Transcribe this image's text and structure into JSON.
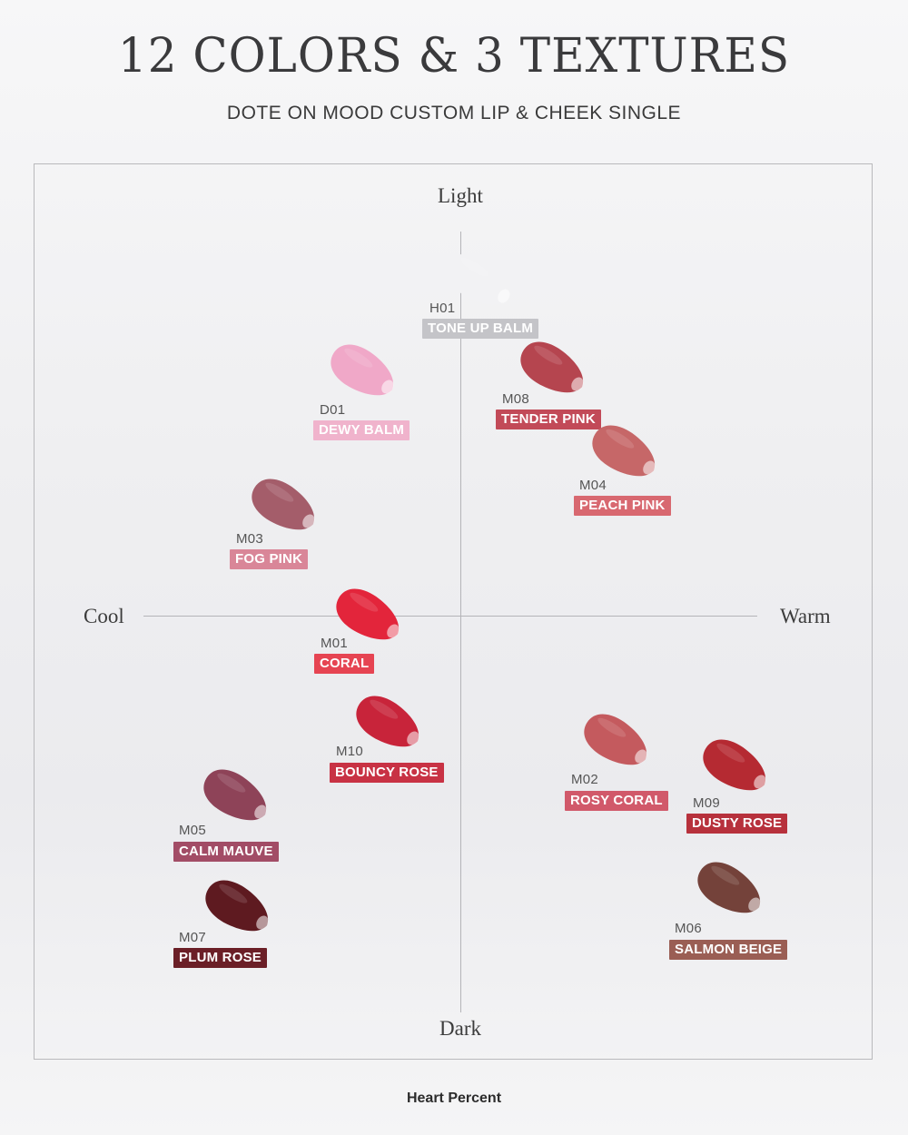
{
  "title": "12 COLORS & 3 TEXTURES",
  "subtitle": "DOTE ON MOOD CUSTOM LIP & CHEEK SINGLE",
  "axes": {
    "top": "Light",
    "bottom": "Dark",
    "left": "Cool",
    "right": "Warm"
  },
  "shades": [
    {
      "code": "H01",
      "name": "TONE UP BALM",
      "swatch_color": "#f2f2f4",
      "label_color": "#c4c4c8"
    },
    {
      "code": "D01",
      "name": "DEWY BALM",
      "swatch_color": "#f0a8c8",
      "label_color": "#f0b3cc"
    },
    {
      "code": "M08",
      "name": "TENDER PINK",
      "swatch_color": "#b5454f",
      "label_color": "#c24a58"
    },
    {
      "code": "M04",
      "name": "PEACH PINK",
      "swatch_color": "#c66768",
      "label_color": "#d86870"
    },
    {
      "code": "M03",
      "name": "FOG PINK",
      "swatch_color": "#a45d6a",
      "label_color": "#d98698"
    },
    {
      "code": "M01",
      "name": "CORAL",
      "swatch_color": "#e3253b",
      "label_color": "#e64452"
    },
    {
      "code": "M10",
      "name": "BOUNCY ROSE",
      "swatch_color": "#c8243a",
      "label_color": "#c83244"
    },
    {
      "code": "M02",
      "name": "ROSY CORAL",
      "swatch_color": "#c45a5e",
      "label_color": "#d1596a"
    },
    {
      "code": "M09",
      "name": "DUSTY ROSE",
      "swatch_color": "#b52a32",
      "label_color": "#b7313c"
    },
    {
      "code": "M05",
      "name": "CALM MAUVE",
      "swatch_color": "#8e4358",
      "label_color": "#a24c66"
    },
    {
      "code": "M07",
      "name": "PLUM ROSE",
      "swatch_color": "#5e1a20",
      "label_color": "#6b1f27"
    },
    {
      "code": "M06",
      "name": "SALMON BEIGE",
      "swatch_color": "#74423a",
      "label_color": "#9a5e54"
    }
  ],
  "brand": "Heart Percent"
}
